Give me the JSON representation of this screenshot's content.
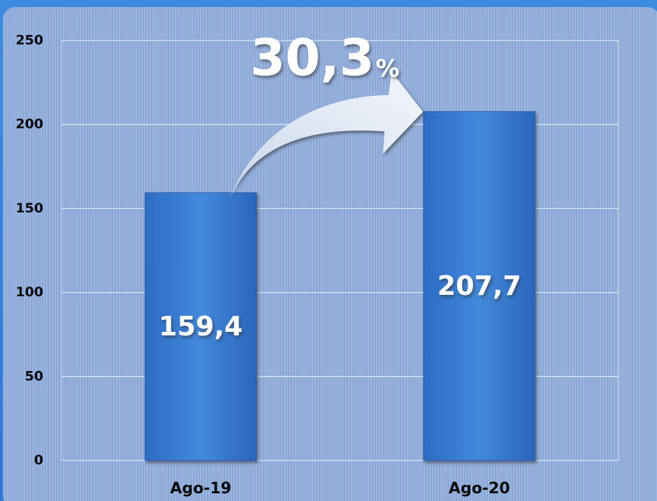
{
  "chart_data": {
    "type": "bar",
    "categories": [
      "Ago-19",
      "Ago-20"
    ],
    "values": [
      159.4,
      207.7
    ],
    "value_labels": [
      "159,4",
      "207,7"
    ],
    "color": "#3a7fd6",
    "ylim": [
      0,
      250
    ],
    "yticks": [
      0,
      50,
      100,
      150,
      200,
      250
    ],
    "grid": true,
    "annotation": "30,3",
    "annotation_unit": "%"
  }
}
